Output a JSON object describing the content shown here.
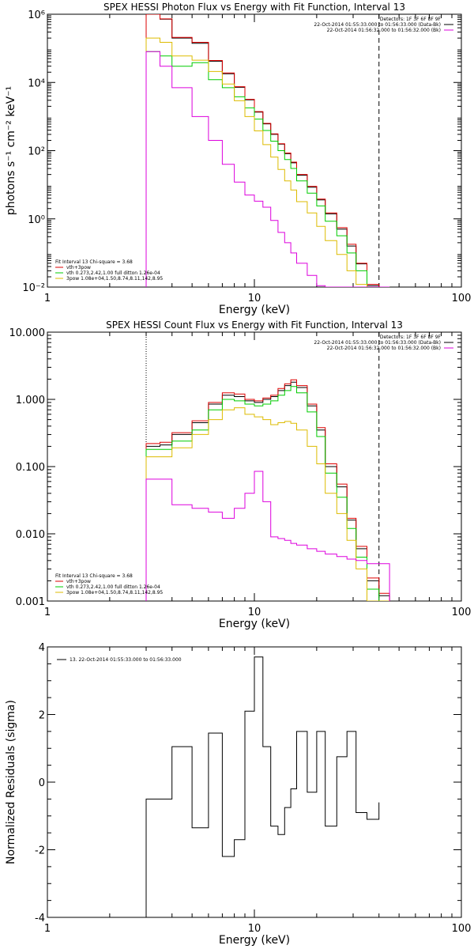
{
  "chart_data": [
    {
      "type": "line",
      "title": "SPEX HESSI Photon Flux vs Energy with Fit Function, Interval 13",
      "xlabel": "Energy (keV)",
      "ylabel": "photons s⁻¹ cm⁻² keV⁻¹",
      "xscale": "log",
      "yscale": "log",
      "xlim": [
        1,
        100
      ],
      "ylim": [
        0.01,
        1000000
      ],
      "xticks": [
        {
          "v": 1,
          "label": "1"
        },
        {
          "v": 10,
          "label": "10"
        },
        {
          "v": 100,
          "label": "100"
        }
      ],
      "yticks": [
        {
          "v": 0.01,
          "label": "10⁻²"
        },
        {
          "v": 1,
          "label": "10⁰"
        },
        {
          "v": 100,
          "label": "10²"
        },
        {
          "v": 10000,
          "label": "10⁴"
        },
        {
          "v": 1000000,
          "label": "10⁶"
        }
      ],
      "vlines": [
        {
          "x": 3,
          "style": "dotted"
        },
        {
          "x": 40,
          "style": "dashed"
        }
      ],
      "legend_top": [
        "Detectors: 1F 3F 6F 8F 9F",
        "22-Oct-2014 01:55:33.000 to 01:56:33.000 (Data-Bk)",
        "22-Oct-2014 01:56:32.000 to 01:56:32.000 (Bk)"
      ],
      "legend_bottom": {
        "header": "Fit Interval 13   Chi-square = 3.68",
        "items": [
          "vth+3pow",
          "vth 0.273,2.42,1.00  full ditton 1.26e-04",
          "3pow 1.08e+04,1.50,8.74,8.11,142,8.95"
        ]
      },
      "edges": [
        3,
        3.5,
        4,
        5,
        6,
        7,
        8,
        9,
        10,
        11,
        12,
        13,
        14,
        15,
        16,
        18,
        20,
        22,
        25,
        28,
        31,
        35,
        40,
        45
      ],
      "series": [
        {
          "color": "#000000",
          "values": [
            1000000,
            720000,
            200000,
            140000,
            42000,
            18000,
            7200,
            3100,
            1350,
            610,
            300,
            155,
            82,
            44,
            19,
            8.5,
            3.6,
            1.4,
            0.5,
            0.16,
            0.048,
            0.011,
            0.01
          ]
        },
        {
          "color": "#dd0000",
          "values": [
            1000000,
            730000,
            210000,
            150000,
            44000,
            19000,
            7500,
            3200,
            1400,
            630,
            310,
            160,
            85,
            46,
            20,
            9,
            3.8,
            1.5,
            0.55,
            0.18,
            0.05,
            0.012,
            0.01
          ]
        },
        {
          "color": "#00cc00",
          "values": [
            80000,
            60000,
            30000,
            38000,
            12000,
            7000,
            3800,
            1800,
            840,
            390,
            190,
            100,
            55,
            30,
            13,
            5.7,
            2.4,
            0.85,
            0.32,
            0.1,
            0.03,
            0.01,
            0.01
          ]
        },
        {
          "color": "#ddbb00",
          "values": [
            200000,
            150000,
            60000,
            45000,
            21000,
            9000,
            2900,
            1000,
            380,
            150,
            65,
            28,
            13,
            7,
            3.2,
            1.5,
            0.6,
            0.23,
            0.09,
            0.03,
            0.012,
            0.01,
            0.01
          ]
        },
        {
          "color": "#dd00dd",
          "values": [
            80000,
            30000,
            7000,
            1000,
            200,
            40,
            12,
            5,
            3.3,
            2.2,
            0.9,
            0.4,
            0.2,
            0.1,
            0.05,
            0.022,
            0.011,
            0.01,
            0.01,
            0.01,
            0.01,
            0.01,
            0.01
          ]
        }
      ]
    },
    {
      "type": "line",
      "title": "SPEX HESSI Count Flux vs Energy with Fit Function, Interval 13",
      "xlabel": "Energy (keV)",
      "ylabel": "",
      "xscale": "log",
      "yscale": "log",
      "xlim": [
        1,
        100
      ],
      "ylim": [
        0.001,
        10
      ],
      "xticks": [
        {
          "v": 1,
          "label": "1"
        },
        {
          "v": 10,
          "label": "10"
        },
        {
          "v": 100,
          "label": "100"
        }
      ],
      "yticks": [
        {
          "v": 0.001,
          "label": "0.001"
        },
        {
          "v": 0.01,
          "label": "0.010"
        },
        {
          "v": 0.1,
          "label": "0.100"
        },
        {
          "v": 1,
          "label": "1.000"
        },
        {
          "v": 10,
          "label": "10.000"
        }
      ],
      "vlines": [
        {
          "x": 3,
          "style": "dotted"
        },
        {
          "x": 40,
          "style": "dashed"
        }
      ],
      "legend_top": [
        "Detectors: 1F 3F 6F 8F 9F",
        "22-Oct-2014 01:55:33.000 to 01:56:33.000 (Data-Bk)",
        "22-Oct-2014 01:56:32.000 to 01:56:32.000 (Bk)"
      ],
      "legend_bottom": {
        "header": "Fit Interval 13   Chi-square = 3.68",
        "items": [
          "vth+3pow",
          "vth 0.273,2.42,1.00  full ditton 1.26e-04",
          "3pow 1.08e+04,1.50,8.74,8.11,142,8.95"
        ]
      },
      "edges": [
        3,
        3.5,
        4,
        5,
        6,
        7,
        8,
        9,
        10,
        11,
        12,
        13,
        14,
        15,
        16,
        18,
        20,
        22,
        25,
        28,
        31,
        35,
        40,
        45
      ],
      "series": [
        {
          "color": "#000000",
          "values": [
            0.2,
            0.21,
            0.3,
            0.45,
            0.85,
            1.15,
            1.1,
            0.95,
            0.9,
            1.0,
            1.1,
            1.35,
            1.6,
            1.8,
            1.5,
            0.8,
            0.35,
            0.1,
            0.05,
            0.016,
            0.006,
            0.002,
            0.0012
          ]
        },
        {
          "color": "#dd0000",
          "values": [
            0.22,
            0.23,
            0.32,
            0.48,
            0.9,
            1.25,
            1.2,
            1.0,
            0.95,
            1.05,
            1.15,
            1.45,
            1.7,
            1.95,
            1.6,
            0.85,
            0.38,
            0.11,
            0.055,
            0.017,
            0.0065,
            0.0022,
            0.0013
          ]
        },
        {
          "color": "#00cc00",
          "values": [
            0.18,
            0.18,
            0.24,
            0.35,
            0.7,
            1.0,
            0.95,
            0.85,
            0.8,
            0.85,
            0.95,
            1.15,
            1.35,
            1.55,
            1.25,
            0.65,
            0.28,
            0.08,
            0.035,
            0.012,
            0.0045,
            0.0015,
            0.001
          ]
        },
        {
          "color": "#ddbb00",
          "values": [
            0.14,
            0.14,
            0.19,
            0.3,
            0.5,
            0.7,
            0.75,
            0.6,
            0.55,
            0.5,
            0.42,
            0.45,
            0.47,
            0.44,
            0.35,
            0.2,
            0.11,
            0.04,
            0.02,
            0.008,
            0.003,
            0.001,
            0.001
          ]
        },
        {
          "color": "#dd00dd",
          "values": [
            0.065,
            0.065,
            0.027,
            0.024,
            0.021,
            0.017,
            0.024,
            0.04,
            0.085,
            0.03,
            0.009,
            0.0085,
            0.008,
            0.0072,
            0.0068,
            0.006,
            0.0055,
            0.005,
            0.0046,
            0.0042,
            0.004,
            0.0036,
            0.0036
          ]
        }
      ]
    },
    {
      "type": "line",
      "title": "",
      "xlabel": "Energy (keV)",
      "ylabel": "Normalized Residuals (sigma)",
      "xscale": "log",
      "yscale": "linear",
      "xlim": [
        1,
        100
      ],
      "ylim": [
        -4,
        4
      ],
      "xticks": [
        {
          "v": 1,
          "label": "1"
        },
        {
          "v": 10,
          "label": "10"
        },
        {
          "v": 100,
          "label": "100"
        }
      ],
      "yticks": [
        {
          "v": -4,
          "label": "-4"
        },
        {
          "v": -2,
          "label": "-2"
        },
        {
          "v": 0,
          "label": "0"
        },
        {
          "v": 2,
          "label": "2"
        },
        {
          "v": 4,
          "label": "4"
        }
      ],
      "legend_top": [
        "13. 22-Oct-2014 01:55:33.000 to 01:56:33.000"
      ],
      "edges": [
        3,
        3.5,
        4,
        5,
        6,
        7,
        8,
        9,
        10,
        11,
        12,
        13,
        14,
        15,
        16,
        18,
        20,
        22,
        25,
        28,
        31,
        35,
        40
      ],
      "series": [
        {
          "color": "#000000",
          "values": [
            -0.5,
            -0.5,
            1.05,
            -1.35,
            1.45,
            -2.2,
            -1.7,
            2.1,
            3.7,
            1.05,
            -1.3,
            -1.55,
            -0.75,
            -0.2,
            1.5,
            -0.3,
            1.5,
            -1.3,
            0.75,
            1.5,
            -0.9,
            -1.1,
            -0.6
          ]
        }
      ]
    }
  ]
}
